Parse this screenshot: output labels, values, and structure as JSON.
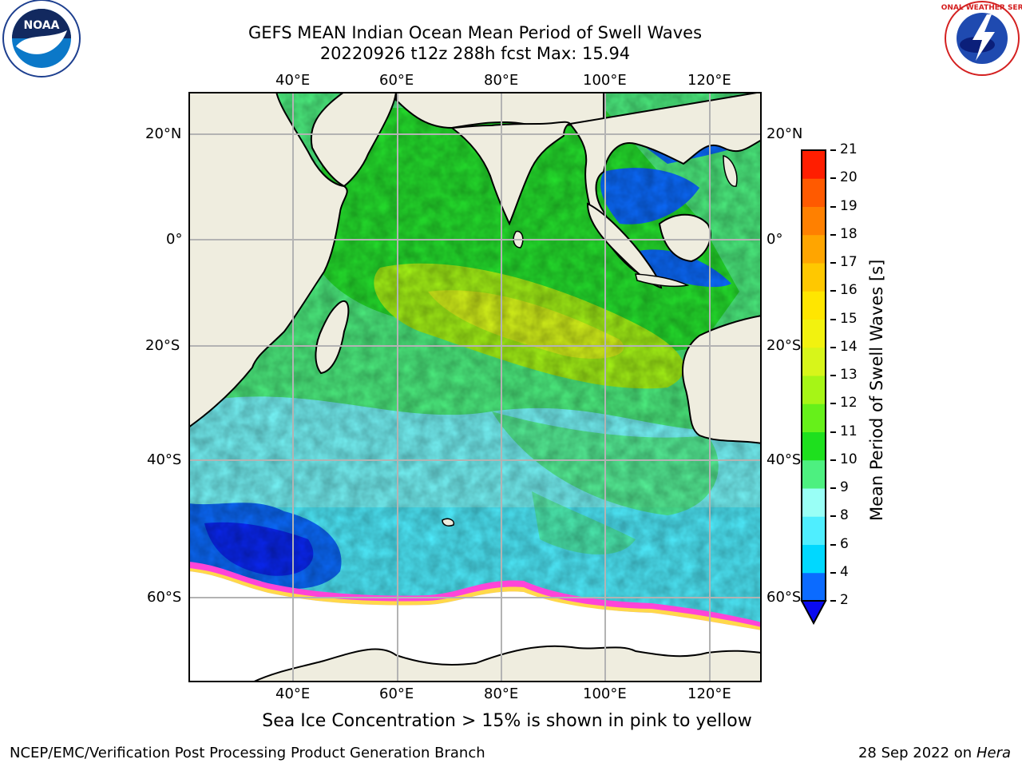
{
  "title": {
    "line1": "GEFS MEAN Indian Ocean Mean Period of Swell Waves",
    "line2": "20220926 t12z 288h fcst   Max: 15.94"
  },
  "logos": {
    "left": {
      "name": "noaa-logo",
      "text": "NOAA"
    },
    "right": {
      "name": "nws-logo",
      "text": "NATIONAL WEATHER SERVICE"
    }
  },
  "map": {
    "top_lon_labels": [
      "40°E",
      "60°E",
      "80°E",
      "100°E",
      "120°E"
    ],
    "bottom_lon_labels": [
      "40°E",
      "60°E",
      "80°E",
      "100°E",
      "120°E"
    ],
    "left_lat_labels": [
      "20°N",
      "0°",
      "20°S",
      "40°S",
      "60°S"
    ],
    "right_lat_labels": [
      "20°N",
      "0°",
      "20°S",
      "40°S",
      "60°S"
    ]
  },
  "colorbar": {
    "title": "Mean Period of Swell Waves [s]",
    "ticks": [
      "2",
      "4",
      "6",
      "8",
      "9",
      "10",
      "11",
      "12",
      "13",
      "14",
      "15",
      "16",
      "17",
      "18",
      "19",
      "20",
      "21"
    ],
    "colors": [
      "#0b6bff",
      "#00d8ff",
      "#4feeff",
      "#99fff6",
      "#4df080",
      "#1ee01e",
      "#66f01a",
      "#a6f516",
      "#d7f51a",
      "#f2f20f",
      "#ffe600",
      "#ffc800",
      "#ffa500",
      "#ff8000",
      "#ff5a00",
      "#ff1e00"
    ],
    "extend_color": "#0a0af0"
  },
  "note": "Sea Ice Concentration > 15% is shown in pink to yellow",
  "footer": {
    "left": "NCEP/EMC/Verification Post Processing Product Generation Branch",
    "right_date": "28 Sep 2022 on",
    "right_host": "Hera"
  }
}
